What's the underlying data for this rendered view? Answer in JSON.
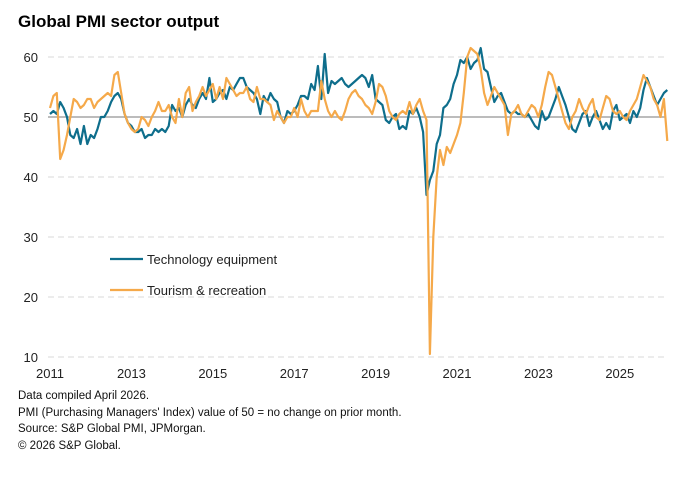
{
  "chart_data": {
    "type": "line",
    "title": "Global PMI sector output",
    "xlabel": "",
    "ylabel": "",
    "ylim": [
      10,
      60
    ],
    "yticks": [
      10,
      20,
      30,
      40,
      50,
      60
    ],
    "xtick_labels": [
      "2011",
      "2013",
      "2015",
      "2017",
      "2019",
      "2021",
      "2023",
      "2025"
    ],
    "x_start": "2011-01",
    "frequency": "monthly",
    "reference_line": 50,
    "grid": "horizontal dashed",
    "legend_position": "center-left",
    "series": [
      {
        "name": "Technology equipment",
        "color": "#0e6e8c",
        "values": [
          50.5,
          51,
          50.5,
          52.5,
          51.5,
          50,
          47,
          46.5,
          48,
          45.5,
          48.5,
          45.5,
          47,
          46.5,
          48,
          50,
          50,
          51,
          52.5,
          53.5,
          54,
          53,
          50.5,
          49,
          48.5,
          47.5,
          47.5,
          48,
          46.5,
          47,
          47,
          48,
          47.5,
          48,
          47.5,
          48.5,
          52,
          51,
          51.5,
          50,
          52,
          53,
          52,
          51.5,
          53,
          54,
          53,
          56.5,
          52.5,
          53,
          54,
          54.5,
          53,
          55,
          54.5,
          55.5,
          56.5,
          56.5,
          55,
          54.5,
          54,
          53,
          50.5,
          53.5,
          52.5,
          54,
          53,
          52.5,
          50,
          49,
          51,
          50.5,
          51,
          52,
          53.5,
          53.5,
          53,
          55.5,
          54.5,
          58.5,
          53,
          60.5,
          54,
          56,
          55.5,
          56,
          56.5,
          55.5,
          55,
          55.5,
          56,
          56.5,
          57,
          56.5,
          55,
          57,
          53,
          52.5,
          52,
          49.5,
          49,
          50,
          50.5,
          48,
          48.5,
          48,
          51,
          50.5,
          51.5,
          50,
          47.5,
          37,
          39.5,
          41,
          45.5,
          47,
          51.5,
          52,
          53,
          55.5,
          57,
          59.5,
          59,
          60,
          58,
          59,
          59.5,
          61.5,
          58,
          57.5,
          55,
          52.5,
          53.5,
          54,
          52.5,
          51,
          50.5,
          51,
          50.5,
          50.5,
          50,
          50.5,
          49.5,
          48.5,
          48,
          51,
          49.5,
          50,
          51.5,
          53,
          55,
          53.5,
          52,
          50,
          48,
          47.5,
          49,
          50.5,
          51,
          48.5,
          50,
          51,
          49.5,
          48,
          49,
          48,
          51,
          52,
          49.5,
          50,
          50.5,
          49,
          51,
          50,
          51.5,
          54.5,
          56.5,
          55,
          53.5,
          52,
          53,
          54,
          54.5
        ]
      },
      {
        "name": "Tourism & recreation",
        "color": "#f5a94a",
        "values": [
          51.5,
          53.5,
          54,
          43,
          44.5,
          47,
          50,
          53,
          52.5,
          51.5,
          52,
          53,
          53,
          51.5,
          52.5,
          53,
          53.5,
          54,
          53.5,
          57,
          57.5,
          54,
          50.5,
          49,
          48,
          47.5,
          48,
          50,
          49.5,
          48.5,
          50,
          51,
          52.5,
          51,
          51,
          52,
          50,
          49,
          53,
          50,
          54,
          55,
          51,
          52.5,
          53.5,
          55,
          53.5,
          54.5,
          55.5,
          53,
          55,
          53,
          56.5,
          55.5,
          54.5,
          53.5,
          54,
          54,
          55,
          53,
          52.5,
          55,
          53,
          53,
          52.5,
          52,
          49.5,
          51,
          50,
          49,
          50,
          50,
          51.5,
          50,
          53,
          51,
          50,
          51,
          51,
          51,
          56,
          53,
          51,
          50,
          51,
          50,
          49.5,
          51,
          53,
          54,
          54.5,
          53.5,
          53,
          52,
          51.5,
          50.5,
          52.5,
          55.5,
          55,
          53.5,
          51,
          50,
          49.5,
          50.5,
          51,
          50.5,
          52.5,
          50.5,
          52,
          53,
          51,
          49.5,
          10.5,
          30,
          40,
          44.5,
          42,
          45,
          44,
          45.5,
          47,
          49,
          54,
          60,
          61.5,
          61,
          60.5,
          58,
          54,
          52,
          53.5,
          55,
          54,
          53,
          52,
          47,
          50.5,
          51,
          52,
          50.5,
          50,
          51,
          52,
          51.5,
          50,
          52,
          55,
          57.5,
          57,
          55,
          53,
          51,
          49,
          48,
          50,
          51,
          53,
          51.5,
          50.5,
          52,
          53,
          50,
          49.5,
          51.5,
          53.5,
          53,
          51,
          50.5,
          51,
          50,
          49.5,
          51,
          52,
          53,
          55,
          57,
          56,
          55,
          53,
          52,
          50,
          53,
          46
        ]
      }
    ]
  },
  "footer": {
    "line1": "Data compiled April 2026.",
    "line2": "PMI (Purchasing Managers' Index) value of 50 = no change on prior month.",
    "line3": "Source: S&P Global PMI, JPMorgan.",
    "line4": "© 2026 S&P Global."
  }
}
